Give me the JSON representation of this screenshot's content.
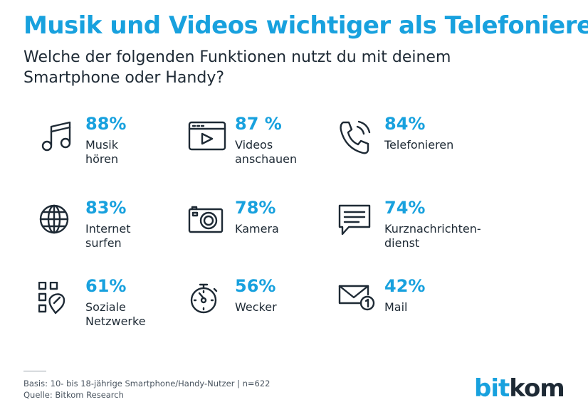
{
  "header": {
    "title": "Musik und Videos wichtiger als Telefonieren",
    "subtitle": "Welche der folgenden Funktionen nutzt du mit deinem Smartphone oder Handy?"
  },
  "chart_data": {
    "type": "table",
    "title": "Musik und Videos wichtiger als Telefonieren",
    "subtitle": "Welche der folgenden Funktionen nutzt du mit deinem Smartphone oder Handy?",
    "categories": [
      "Musik hören",
      "Videos anschauen",
      "Telefonieren",
      "Internet surfen",
      "Kamera",
      "Kurznachrichtendienst",
      "Soziale Netzwerke",
      "Wecker",
      "Mail"
    ],
    "values": [
      88,
      87,
      84,
      83,
      78,
      74,
      61,
      56,
      42
    ],
    "items": [
      {
        "label": "Musik\nhören",
        "value_text": "88%",
        "value": 88,
        "icon": "music-note-icon"
      },
      {
        "label": "Videos\nanschauen",
        "value_text": "87 %",
        "value": 87,
        "icon": "video-player-icon"
      },
      {
        "label": "Telefonieren",
        "value_text": "84%",
        "value": 84,
        "icon": "phone-icon"
      },
      {
        "label": "Internet\nsurfen",
        "value_text": "83%",
        "value": 83,
        "icon": "globe-icon"
      },
      {
        "label": "Kamera",
        "value_text": "78%",
        "value": 78,
        "icon": "camera-icon"
      },
      {
        "label": "Kurznachrichten-\ndienst",
        "value_text": "74%",
        "value": 74,
        "icon": "chat-bubble-icon"
      },
      {
        "label": "Soziale\nNetzwerke",
        "value_text": "61%",
        "value": 61,
        "icon": "social-network-icon"
      },
      {
        "label": "Wecker",
        "value_text": "56%",
        "value": 56,
        "icon": "stopwatch-icon"
      },
      {
        "label": "Mail",
        "value_text": "42%",
        "value": 42,
        "icon": "mail-icon"
      }
    ],
    "unit": "%"
  },
  "footer": {
    "basis": "Basis: 10- bis 18-jährige Smartphone/Handy-Nutzer  | n=622",
    "source": "Quelle: Bitkom Research"
  },
  "logo": {
    "part1": "bit",
    "part2": "kom"
  },
  "colors": {
    "accent": "#18a1de",
    "text": "#1e2a35"
  }
}
